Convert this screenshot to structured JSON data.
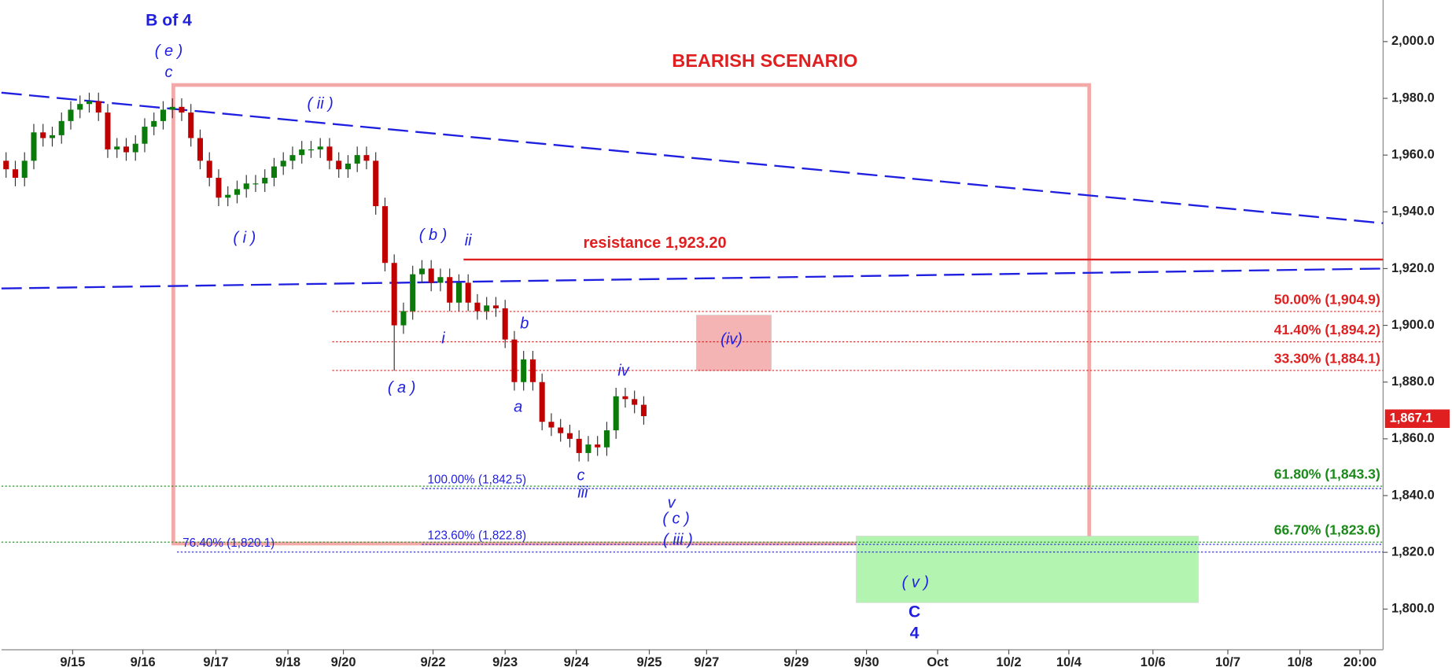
{
  "chart_data": {
    "type": "candlestick",
    "title": "BEARISH SCENARIO",
    "xlim": [
      0,
      149.5
    ],
    "ylim": [
      1790,
      2018
    ],
    "yticks": [
      {
        "value": 1800,
        "label": "1,800.0"
      },
      {
        "value": 1820,
        "label": "1,820.0"
      },
      {
        "value": 1840,
        "label": "1,840.0"
      },
      {
        "value": 1860,
        "label": "1,860.0"
      },
      {
        "value": 1880,
        "label": "1,880.0"
      },
      {
        "value": 1900,
        "label": "1,900.0"
      },
      {
        "value": 1920,
        "label": "1,920.0"
      },
      {
        "value": 1940,
        "label": "1,940.0"
      },
      {
        "value": 1960,
        "label": "1,960.0"
      },
      {
        "value": 1980,
        "label": "1,980.0"
      },
      {
        "value": 2000,
        "label": "2,000.0"
      }
    ],
    "xticks": [
      {
        "value": 7.7,
        "label": "9/15"
      },
      {
        "value": 15.3,
        "label": "9/16"
      },
      {
        "value": 23.2,
        "label": "9/17"
      },
      {
        "value": 31,
        "label": "9/18"
      },
      {
        "value": 37,
        "label": "9/20"
      },
      {
        "value": 46.7,
        "label": "9/22"
      },
      {
        "value": 54.5,
        "label": "9/23"
      },
      {
        "value": 62.2,
        "label": "9/24"
      },
      {
        "value": 70.1,
        "label": "9/25"
      },
      {
        "value": 76.3,
        "label": "9/27"
      },
      {
        "value": 86,
        "label": "9/29"
      },
      {
        "value": 93.6,
        "label": "9/30"
      },
      {
        "value": 101.3,
        "label": "Oct"
      },
      {
        "value": 109,
        "label": "10/2"
      },
      {
        "value": 115.5,
        "label": "10/4"
      },
      {
        "value": 124.6,
        "label": "10/6"
      },
      {
        "value": 132.7,
        "label": "10/7"
      },
      {
        "value": 140.5,
        "label": "10/8"
      },
      {
        "value": 147,
        "label": "20:00"
      }
    ],
    "up_color": "#0a7a0a",
    "down_color": "#c00000",
    "x": [
      0.5,
      1.5,
      2.5,
      3.5,
      4.5,
      5.5,
      6.5,
      7.5,
      8.5,
      9.5,
      10.5,
      11.5,
      12.5,
      13.5,
      14.5,
      15.5,
      16.5,
      17.5,
      18.5,
      19.5,
      20.5,
      21.5,
      22.5,
      23.5,
      24.5,
      25.5,
      26.5,
      27.5,
      28.5,
      29.5,
      30.5,
      31.5,
      32.5,
      33.5,
      34.5,
      35.5,
      36.5,
      37.5,
      38.5,
      39.5,
      40.5,
      41.5,
      42.5,
      43.5,
      44.5,
      45.5,
      46.5,
      47.5,
      48.5,
      49.5,
      50.5,
      51.5,
      52.5,
      53.5,
      54.5,
      55.5,
      56.5,
      57.5,
      58.5,
      59.5,
      60.5,
      61.5,
      62.5,
      63.5,
      64.5,
      65.5,
      66.5,
      67.5,
      68.5,
      69.5
    ],
    "open": [
      1958,
      1955,
      1952,
      1958,
      1968,
      1966,
      1967,
      1972,
      1976,
      1978,
      1979,
      1975,
      1962,
      1963,
      1961,
      1964,
      1970,
      1972,
      1976,
      1977,
      1975,
      1966,
      1958,
      1952,
      1945,
      1946,
      1948,
      1950,
      1950,
      1952,
      1956,
      1958,
      1960,
      1962,
      1962,
      1963,
      1958,
      1955,
      1957,
      1960,
      1958,
      1942,
      1922,
      1900,
      1905,
      1918,
      1920,
      1915,
      1917,
      1908,
      1915,
      1908,
      1905,
      1907,
      1906,
      1895,
      1880,
      1888,
      1880,
      1866,
      1864,
      1862,
      1860,
      1855,
      1858,
      1857,
      1863,
      1875,
      1874,
      1872
    ],
    "high": [
      1961,
      1958,
      1961,
      1971,
      1971,
      1970,
      1975,
      1979,
      1981,
      1982,
      1982,
      1978,
      1966,
      1966,
      1967,
      1973,
      1975,
      1979,
      1980,
      1980,
      1978,
      1969,
      1961,
      1955,
      1949,
      1951,
      1953,
      1953,
      1955,
      1959,
      1961,
      1963,
      1965,
      1965,
      1966,
      1966,
      1961,
      1960,
      1963,
      1963,
      1961,
      1945,
      1925,
      1908,
      1921,
      1923,
      1923,
      1920,
      1920,
      1918,
      1918,
      1911,
      1910,
      1910,
      1909,
      1898,
      1891,
      1891,
      1883,
      1869,
      1867,
      1865,
      1863,
      1861,
      1861,
      1866,
      1878,
      1878,
      1877,
      1875
    ],
    "low": [
      1952,
      1949,
      1949,
      1955,
      1963,
      1963,
      1964,
      1969,
      1973,
      1975,
      1972,
      1959,
      1959,
      1958,
      1958,
      1961,
      1967,
      1969,
      1973,
      1972,
      1963,
      1955,
      1949,
      1942,
      1942,
      1943,
      1945,
      1947,
      1947,
      1949,
      1953,
      1955,
      1957,
      1959,
      1959,
      1955,
      1952,
      1952,
      1954,
      1955,
      1939,
      1919,
      1884,
      1897,
      1902,
      1915,
      1912,
      1912,
      1905,
      1905,
      1905,
      1902,
      1902,
      1903,
      1892,
      1877,
      1877,
      1877,
      1863,
      1861,
      1859,
      1857,
      1852,
      1852,
      1854,
      1854,
      1860,
      1871,
      1869,
      1865
    ],
    "close": [
      1955,
      1952,
      1958,
      1968,
      1966,
      1967,
      1972,
      1976,
      1978,
      1979,
      1975,
      1962,
      1963,
      1961,
      1964,
      1970,
      1972,
      1976,
      1977,
      1975,
      1966,
      1958,
      1952,
      1945,
      1946,
      1948,
      1950,
      1950,
      1952,
      1956,
      1958,
      1960,
      1962,
      1962,
      1963,
      1958,
      1955,
      1957,
      1960,
      1958,
      1942,
      1922,
      1900,
      1905,
      1918,
      1920,
      1915,
      1917,
      1908,
      1915,
      1908,
      1905,
      1907,
      1906,
      1895,
      1880,
      1888,
      1880,
      1866,
      1864,
      1862,
      1860,
      1855,
      1858,
      1857,
      1863,
      1875,
      1874,
      1872,
      1868
    ],
    "last_price": {
      "value": 1867.1,
      "label": "1,867.1"
    },
    "trendlines": [
      {
        "from": [
          0,
          1982
        ],
        "to": [
          149.5,
          1936
        ],
        "color": "#1f1fe0"
      },
      {
        "from": [
          0,
          1913
        ],
        "to": [
          149.5,
          1920
        ],
        "color": "#1f1fe0"
      }
    ],
    "resistance": {
      "value": 1923.2,
      "label": "resistance 1,923.20",
      "start": 50,
      "color": "#e02020"
    },
    "levels": [
      {
        "value": 1904.9,
        "label": "50.00% (1,904.9)",
        "color": "#e02020",
        "start": 35.8
      },
      {
        "value": 1894.2,
        "label": "41.40% (1,894.2)",
        "color": "#e02020",
        "start": 35.8
      },
      {
        "value": 1884.1,
        "label": "33.30% (1,884.1)",
        "color": "#e02020",
        "start": 35.8
      },
      {
        "value": 1843.3,
        "label": "61.80% (1,843.3)",
        "color": "#1a8a1a",
        "start": 0
      },
      {
        "value": 1823.6,
        "label": "66.70% (1,823.6)",
        "color": "#1a8a1a",
        "start": 0
      },
      {
        "value": 1842.5,
        "label": "100.00% (1,842.5)",
        "color": "#1f1fe0",
        "start": 45.5
      },
      {
        "value": 1822.8,
        "label": "123.60% (1,822.8)",
        "color": "#1f1fe0",
        "start": 45.5
      },
      {
        "value": 1820.1,
        "label": "76.40% (1,820.1)",
        "color": "#1f1fe0",
        "start": 19
      }
    ],
    "zones": [
      {
        "x": [
          18.6,
          117.7
        ],
        "y": [
          1823.1,
          1984.7
        ],
        "color": "#f4a9a9",
        "filled": false
      },
      {
        "x": [
          75.2,
          83.3
        ],
        "y": [
          1884,
          1903.6
        ],
        "color": "#f4b4b4",
        "filled": true
      },
      {
        "x": [
          92.5,
          129.5
        ],
        "y": [
          1802.3,
          1825.7
        ],
        "color": "#b3f5b0",
        "filled": true
      }
    ],
    "annotations": [
      "B of 4",
      "( e )",
      "c",
      "( ii )",
      "( i )",
      "( b )",
      "ii",
      "i",
      "( a )",
      "b",
      "a",
      "iv",
      "c",
      "iii",
      "v",
      "( c )",
      "( iii )",
      "(iv)",
      "( v )",
      "C",
      "4"
    ]
  }
}
